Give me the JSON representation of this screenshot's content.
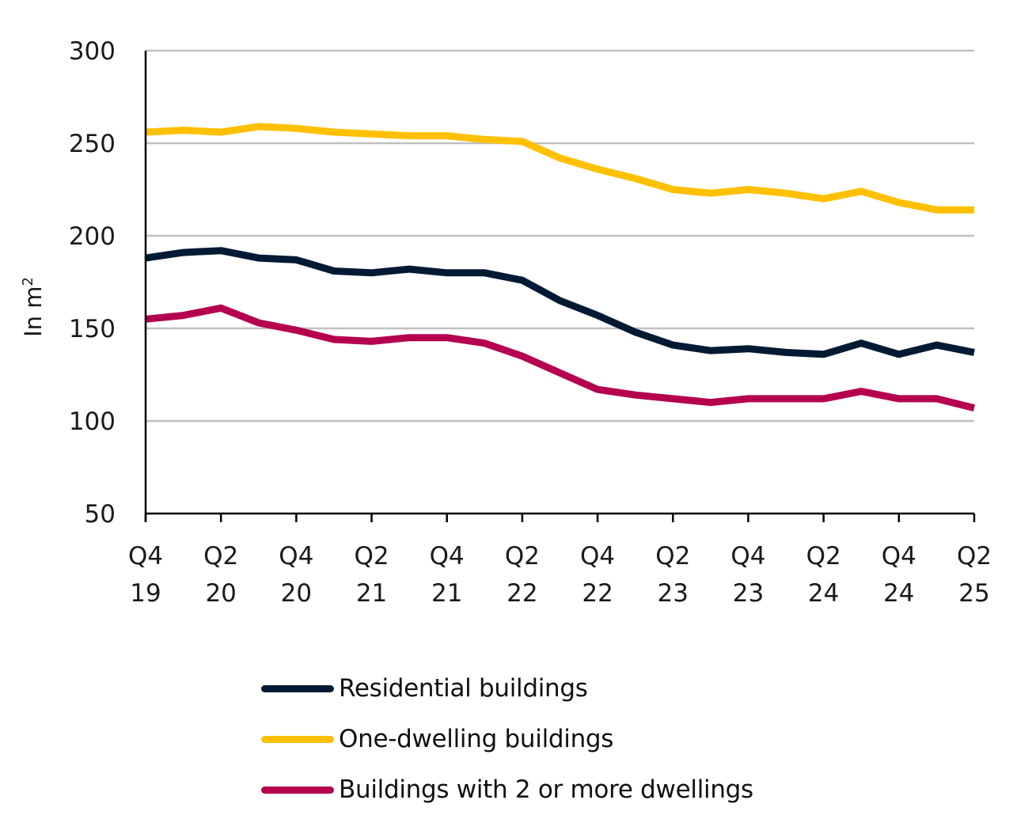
{
  "chart_data": {
    "type": "line",
    "title": "",
    "xlabel": "",
    "ylabel": "In m",
    "ylabel_superscript": "2",
    "ylim": [
      50,
      300
    ],
    "yticks": [
      50,
      100,
      150,
      200,
      250,
      300
    ],
    "grid": "horizontal",
    "legend_position": "bottom",
    "x": [
      "Q4 19",
      "Q1 20",
      "Q2 20",
      "Q3 20",
      "Q4 20",
      "Q1 21",
      "Q2 21",
      "Q3 21",
      "Q4 21",
      "Q1 22",
      "Q2 22",
      "Q3 22",
      "Q4 22",
      "Q1 23",
      "Q2 23",
      "Q3 23",
      "Q4 23",
      "Q1 24",
      "Q2 24",
      "Q3 24",
      "Q4 24",
      "Q1 25",
      "Q2 25"
    ],
    "xtick_labels": [
      {
        "q": "Q4",
        "y": "19"
      },
      {
        "q": "Q2",
        "y": "20"
      },
      {
        "q": "Q4",
        "y": "20"
      },
      {
        "q": "Q2",
        "y": "21"
      },
      {
        "q": "Q4",
        "y": "21"
      },
      {
        "q": "Q2",
        "y": "22"
      },
      {
        "q": "Q4",
        "y": "22"
      },
      {
        "q": "Q2",
        "y": "23"
      },
      {
        "q": "Q4",
        "y": "23"
      },
      {
        "q": "Q2",
        "y": "24"
      },
      {
        "q": "Q4",
        "y": "24"
      },
      {
        "q": "Q2",
        "y": "25"
      }
    ],
    "series": [
      {
        "name": "Residential buildings",
        "color": "#001a33",
        "values": [
          188,
          191,
          192,
          188,
          187,
          181,
          180,
          182,
          180,
          180,
          176,
          165,
          157,
          148,
          141,
          138,
          139,
          137,
          136,
          142,
          136,
          141,
          137
        ]
      },
      {
        "name": "One-dwelling buildings",
        "color": "#ffc000",
        "values": [
          256,
          257,
          256,
          259,
          258,
          256,
          255,
          254,
          254,
          252,
          251,
          242,
          236,
          231,
          225,
          223,
          225,
          223,
          220,
          224,
          218,
          214,
          214
        ]
      },
      {
        "name": "Buildings with 2 or more dwellings",
        "color": "#b5004f",
        "values": [
          155,
          157,
          161,
          153,
          149,
          144,
          143,
          145,
          145,
          142,
          135,
          126,
          117,
          114,
          112,
          110,
          112,
          112,
          112,
          116,
          112,
          112,
          107
        ]
      }
    ]
  }
}
